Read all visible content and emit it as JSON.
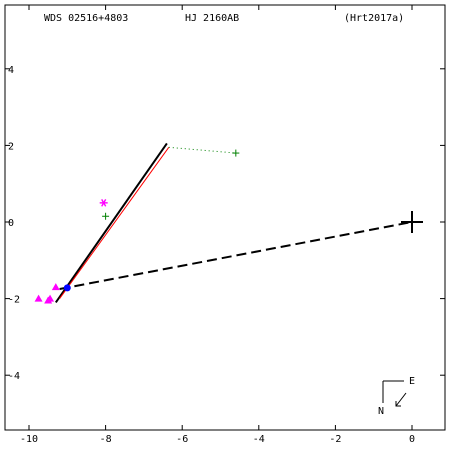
{
  "header": {
    "left": "WDS 02516+4803",
    "center": "HJ 2160AB",
    "right": "(Hrt2017a)"
  },
  "compass": {
    "east": "E",
    "north": "N"
  },
  "chart_data": {
    "type": "scatter",
    "title": "",
    "xlabel": "",
    "ylabel": "",
    "xlim": [
      -10.4,
      1.0
    ],
    "ylim": [
      -5.7,
      5.7
    ],
    "x_ticks": [
      -10,
      -8,
      -6,
      -4,
      -2,
      0
    ],
    "y_ticks": [
      4,
      2,
      0,
      -2,
      -4
    ],
    "x_tick_labels": [
      "-10",
      "-8",
      "-6",
      "-4",
      "-2",
      "0"
    ],
    "y_tick_labels": [
      "4",
      "2",
      "0",
      "-2",
      "-4"
    ],
    "origin": {
      "x": 0,
      "y": 0,
      "marker": "+"
    },
    "series": [
      {
        "kind": "orbit",
        "color": "#000000",
        "points": [
          [
            -9.3,
            -2.1
          ],
          [
            -6.4,
            2.05
          ]
        ]
      },
      {
        "kind": "orbit",
        "color": "#ff0000",
        "points": [
          [
            -9.2,
            -2.0
          ],
          [
            -6.35,
            1.95
          ]
        ]
      },
      {
        "kind": "dashed-line",
        "color": "#000000",
        "points": [
          [
            -9.2,
            -1.75
          ],
          [
            0.0,
            0.0
          ]
        ]
      },
      {
        "kind": "dotted-line",
        "color": "#008000",
        "points": [
          [
            -6.35,
            1.95
          ],
          [
            -4.6,
            1.8
          ]
        ]
      },
      {
        "kind": "plus",
        "color": "#008000",
        "points": [
          [
            -4.6,
            1.8
          ],
          [
            -8.0,
            0.15
          ]
        ]
      },
      {
        "kind": "asterisk",
        "color": "#ff00ff",
        "points": [
          [
            -8.05,
            0.5
          ]
        ]
      },
      {
        "kind": "triangle",
        "color": "#ff00ff",
        "points": [
          [
            -9.3,
            -1.7
          ],
          [
            -9.45,
            -2.0
          ],
          [
            -9.75,
            -2.0
          ],
          [
            -9.5,
            -2.05
          ]
        ]
      },
      {
        "kind": "dot",
        "color": "#0000ff",
        "points": [
          [
            -9.0,
            -1.72
          ]
        ]
      }
    ]
  }
}
